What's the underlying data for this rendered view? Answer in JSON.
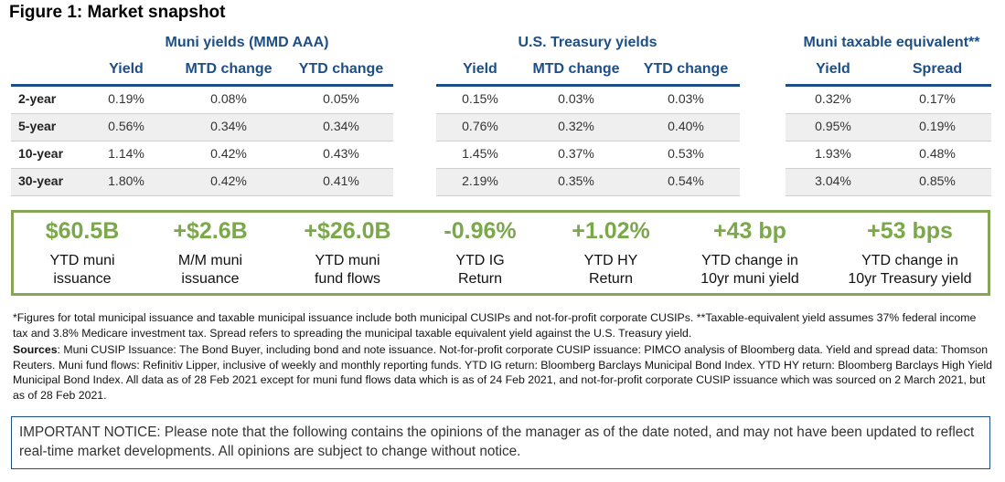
{
  "title": "Figure 1: Market snapshot",
  "groups": {
    "muni": "Muni yields (MMD AAA)",
    "treasury": "U.S. Treasury yields",
    "taxable": "Muni taxable equivalent**"
  },
  "headers": {
    "muni": [
      "Yield",
      "MTD change",
      "YTD change"
    ],
    "treasury": [
      "Yield",
      "MTD change",
      "YTD change"
    ],
    "taxable": [
      "Yield",
      "Spread"
    ]
  },
  "rows": [
    {
      "label": "2-year",
      "muni": [
        "0.19%",
        "0.08%",
        "0.05%"
      ],
      "treasury": [
        "0.15%",
        "0.03%",
        "0.03%"
      ],
      "taxable": [
        "0.32%",
        "0.17%"
      ]
    },
    {
      "label": "5-year",
      "muni": [
        "0.56%",
        "0.34%",
        "0.34%"
      ],
      "treasury": [
        "0.76%",
        "0.32%",
        "0.40%"
      ],
      "taxable": [
        "0.95%",
        "0.19%"
      ]
    },
    {
      "label": "10-year",
      "muni": [
        "1.14%",
        "0.42%",
        "0.43%"
      ],
      "treasury": [
        "1.45%",
        "0.37%",
        "0.53%"
      ],
      "taxable": [
        "1.93%",
        "0.48%"
      ]
    },
    {
      "label": "30-year",
      "muni": [
        "1.80%",
        "0.42%",
        "0.41%"
      ],
      "treasury": [
        "2.19%",
        "0.35%",
        "0.54%"
      ],
      "taxable": [
        "3.04%",
        "0.85%"
      ]
    }
  ],
  "kpis": [
    {
      "value": "$60.5B",
      "label": "YTD muni\nissuance"
    },
    {
      "value": "+$2.6B",
      "label": "M/M muni\nissuance"
    },
    {
      "value": "+$26.0B",
      "label": "YTD muni\nfund flows"
    },
    {
      "value": "-0.96%",
      "label": "YTD IG\nReturn"
    },
    {
      "value": "+1.02%",
      "label": "YTD HY\nReturn"
    },
    {
      "value": "+43 bp",
      "label": "YTD change in\n10yr muni yield"
    },
    {
      "value": "+53 bps",
      "label": "YTD change in\n10yr Treasury yield"
    }
  ],
  "footnote": "*Figures for total municipal issuance and taxable municipal issuance include both municipal CUSIPs and not-for-profit corporate CUSIPs. **Taxable-equivalent yield assumes 37% federal income tax and 3.8% Medicare investment tax. Spread refers to spreading the municipal taxable equivalent yield against the U.S. Treasury yield.",
  "sources_label": "Sources",
  "sources_text": ": Muni CUSIP Issuance: The Bond Buyer, including bond and note issuance. Not-for-profit corporate CUSIP issuance: PIMCO analysis of Bloomberg data. Yield and spread data: Thomson Reuters. Muni fund flows: Refinitiv Lipper, inclusive of weekly and monthly reporting funds. YTD IG return: Bloomberg Barclays Municipal Bond Index. YTD HY return: Bloomberg Barclays High Yield Municipal Bond Index. All data as of 28 Feb 2021 except for muni fund flows data which is as of 24 Feb 2021, and not-for-profit corporate CUSIP issuance which was sourced on 2 March 2021, but as of 28 Feb 2021.",
  "notice": "IMPORTANT NOTICE: Please note that the following contains the opinions of the manager as of the date noted, and may not have been updated to reflect real-time market developments. All opinions are subject to change without notice."
}
